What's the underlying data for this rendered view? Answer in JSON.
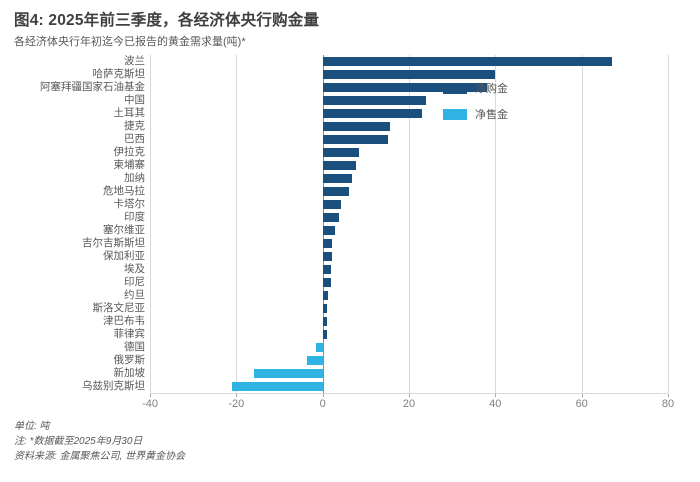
{
  "chart_data": {
    "type": "bar",
    "orientation": "horizontal",
    "title": "图4: 2025年前三季度，各经济体央行购金量",
    "subtitle": "各经济体央行年初迄今已报告的黄金需求量(吨)*",
    "categories": [
      "波兰",
      "哈萨克斯坦",
      "阿塞拜疆国家石油基金",
      "中国",
      "土耳其",
      "捷克",
      "巴西",
      "伊拉克",
      "柬埔寨",
      "加纳",
      "危地马拉",
      "卡塔尔",
      "印度",
      "塞尔维亚",
      "吉尔吉斯斯坦",
      "保加利亚",
      "埃及",
      "印尼",
      "约旦",
      "斯洛文尼亚",
      "津巴布韦",
      "菲律宾",
      "德国",
      "俄罗斯",
      "新加坡",
      "乌兹别克斯坦"
    ],
    "values": [
      67,
      40,
      38,
      24,
      23,
      15.5,
      15.2,
      8.4,
      7.8,
      6.7,
      6.1,
      4.3,
      3.9,
      2.9,
      2.1,
      2.1,
      2.0,
      1.9,
      1.2,
      1.0,
      1.0,
      1.0,
      -1.5,
      -3.6,
      -16,
      -21
    ],
    "xlabel": "",
    "ylabel": "",
    "xlim": [
      -40,
      80
    ],
    "xticks": [
      -40,
      -20,
      0,
      20,
      40,
      60,
      80
    ],
    "grid": "vertical-only",
    "legend_position": "right-inside",
    "series_colors": {
      "positive": "#1B4F7D",
      "negative": "#2FB3E3"
    },
    "legend": [
      {
        "label": "净购金",
        "color": "#1B4F7D"
      },
      {
        "label": "净售金",
        "color": "#2FB3E3"
      }
    ]
  },
  "footer": {
    "unit": "单位: 吨",
    "note": "注: *数据截至2025年9月30日",
    "source": "资料来源: 金属聚焦公司, 世界黄金协会"
  }
}
